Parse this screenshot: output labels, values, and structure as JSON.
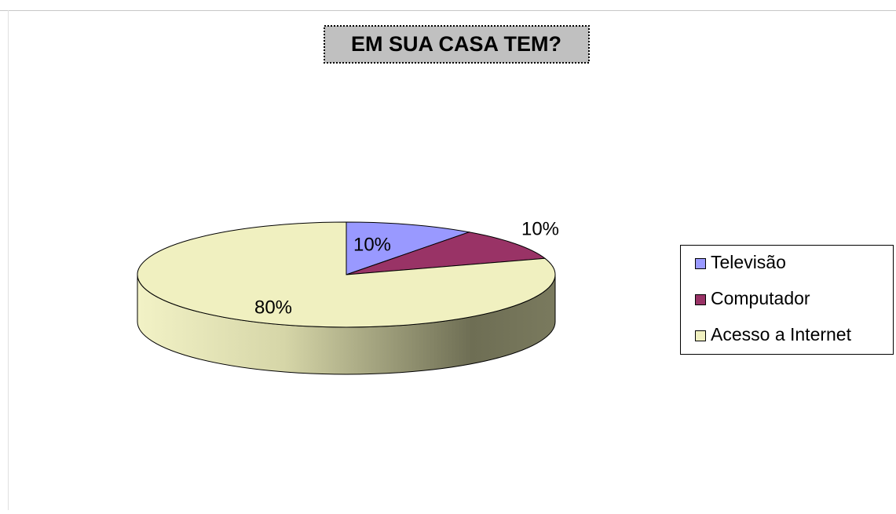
{
  "chart_data": {
    "type": "pie",
    "title": "EM SUA CASA TEM?",
    "categories": [
      "Televisão",
      "Computador",
      "Acesso a Internet"
    ],
    "values": [
      10,
      10,
      80
    ],
    "value_labels": [
      "10%",
      "10%",
      "80%"
    ],
    "colors": [
      "#9999ff",
      "#993366",
      "#f0f0c0"
    ],
    "legend": "right"
  }
}
